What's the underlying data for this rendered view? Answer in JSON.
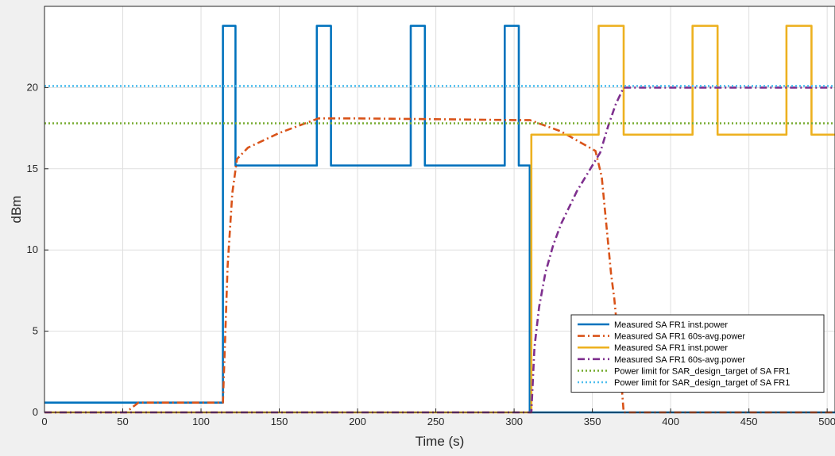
{
  "chart_data": {
    "type": "line",
    "xlabel": "Time (s)",
    "ylabel": "dBm",
    "xlim": [
      0,
      505
    ],
    "ylim": [
      0,
      25
    ],
    "xticks": [
      0,
      50,
      100,
      150,
      200,
      250,
      300,
      350,
      400,
      450,
      500
    ],
    "yticks": [
      0,
      5,
      10,
      15,
      20
    ],
    "grid": true,
    "legend_position": "bottom-right",
    "series": [
      {
        "name": "Measured SA FR1 inst.power",
        "color": "#0072bd",
        "style": "solid",
        "x": [
          0,
          114,
          114,
          122,
          122,
          174,
          174,
          183,
          183,
          234,
          234,
          243,
          243,
          294,
          294,
          303,
          303,
          310,
          310,
          505
        ],
        "y": [
          0.6,
          0.6,
          23.8,
          23.8,
          15.2,
          15.2,
          23.8,
          23.8,
          15.2,
          15.2,
          23.8,
          23.8,
          15.2,
          15.2,
          23.8,
          23.8,
          15.2,
          15.2,
          0,
          0
        ]
      },
      {
        "name": "Measured SA FR1 60s-avg.power",
        "color": "#d95319",
        "style": "dashdot",
        "x": [
          0,
          52,
          60,
          114,
          117,
          120,
          123,
          130,
          150,
          175,
          200,
          250,
          300,
          310,
          330,
          352,
          356,
          359,
          362,
          364,
          366,
          368,
          370,
          505
        ],
        "y": [
          0,
          0,
          0.6,
          0.6,
          9,
          13.5,
          15.6,
          16.3,
          17.2,
          18.1,
          18.1,
          18.05,
          18.0,
          18.0,
          17.3,
          16.1,
          14.5,
          11.5,
          8.5,
          7.0,
          5.0,
          2.5,
          0,
          0
        ]
      },
      {
        "name": "Measured SA FR1 inst.power",
        "color": "#edb120",
        "style": "solid",
        "x": [
          0,
          311,
          311,
          354,
          354,
          370,
          370,
          414,
          414,
          430,
          430,
          474,
          474,
          490,
          490,
          505
        ],
        "y": [
          0,
          0,
          17.1,
          17.1,
          23.8,
          23.8,
          17.1,
          17.1,
          23.8,
          23.8,
          17.1,
          17.1,
          23.8,
          23.8,
          17.1,
          17.1
        ]
      },
      {
        "name": "Measured SA FR1 60s-avg.power",
        "color": "#7e2f8e",
        "style": "dashdot",
        "x": [
          0,
          311,
          313,
          316,
          320,
          325,
          330,
          340,
          350,
          355,
          360,
          365,
          370,
          400,
          450,
          505
        ],
        "y": [
          0,
          0,
          4.0,
          6.5,
          8.6,
          10.3,
          11.6,
          13.6,
          15.2,
          16.0,
          17.6,
          19.0,
          20.0,
          20.0,
          20.0,
          20.0
        ]
      },
      {
        "name": "Power limit for SAR_design_target of SA FR1",
        "color": "#77ac30",
        "style": "dotted",
        "x": [
          0,
          505
        ],
        "y": [
          17.8,
          17.8
        ]
      },
      {
        "name": "Power limit for SAR_design_target of SA FR1",
        "color": "#4dbeee",
        "style": "dotted",
        "x": [
          0,
          505
        ],
        "y": [
          20.1,
          20.1
        ]
      }
    ]
  }
}
